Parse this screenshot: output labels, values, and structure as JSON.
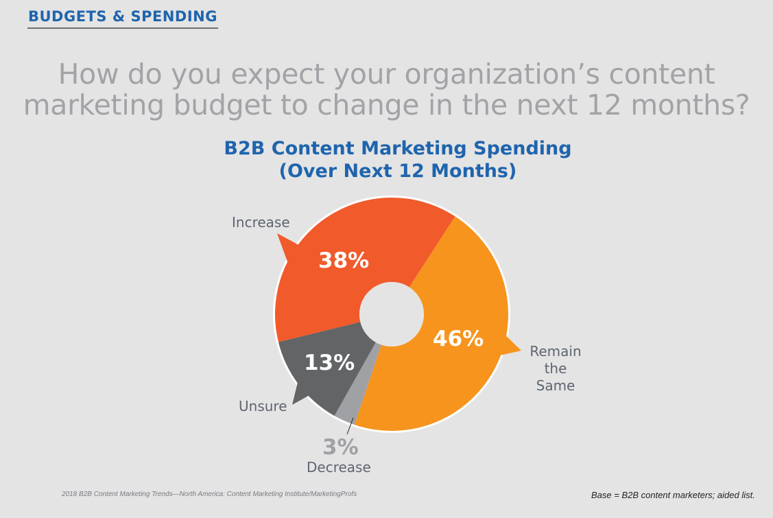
{
  "header": {
    "section": "BUDGETS & SPENDING",
    "question_line1": "How do you expect your organization’s content",
    "question_line2": "marketing budget to change in the next 12 months?"
  },
  "chart_data": {
    "type": "pie",
    "variant": "donut",
    "title": "B2B Content Marketing Spending",
    "subtitle": "(Over Next 12 Months)",
    "unit": "%",
    "slices": [
      {
        "name": "Remain the Same",
        "value": 46,
        "label": "46%",
        "color": "#f7941e"
      },
      {
        "name": "Decrease",
        "value": 3,
        "label": "3%",
        "color": "#a0a1a5"
      },
      {
        "name": "Unsure",
        "value": 13,
        "label": "13%",
        "color": "#636466"
      },
      {
        "name": "Increase",
        "value": 38,
        "label": "38%",
        "color": "#f15a2b"
      }
    ],
    "legend": "callout-labels"
  },
  "labels": {
    "increase": "Increase",
    "remain_line1": "Remain",
    "remain_line2": "the Same",
    "unsure": "Unsure",
    "decrease": "Decrease"
  },
  "footer": {
    "source": "2018 B2B Content Marketing Trends—North America: Content Marketing Institute/MarketingProfs",
    "base": "Base = B2B content marketers; aided list."
  }
}
